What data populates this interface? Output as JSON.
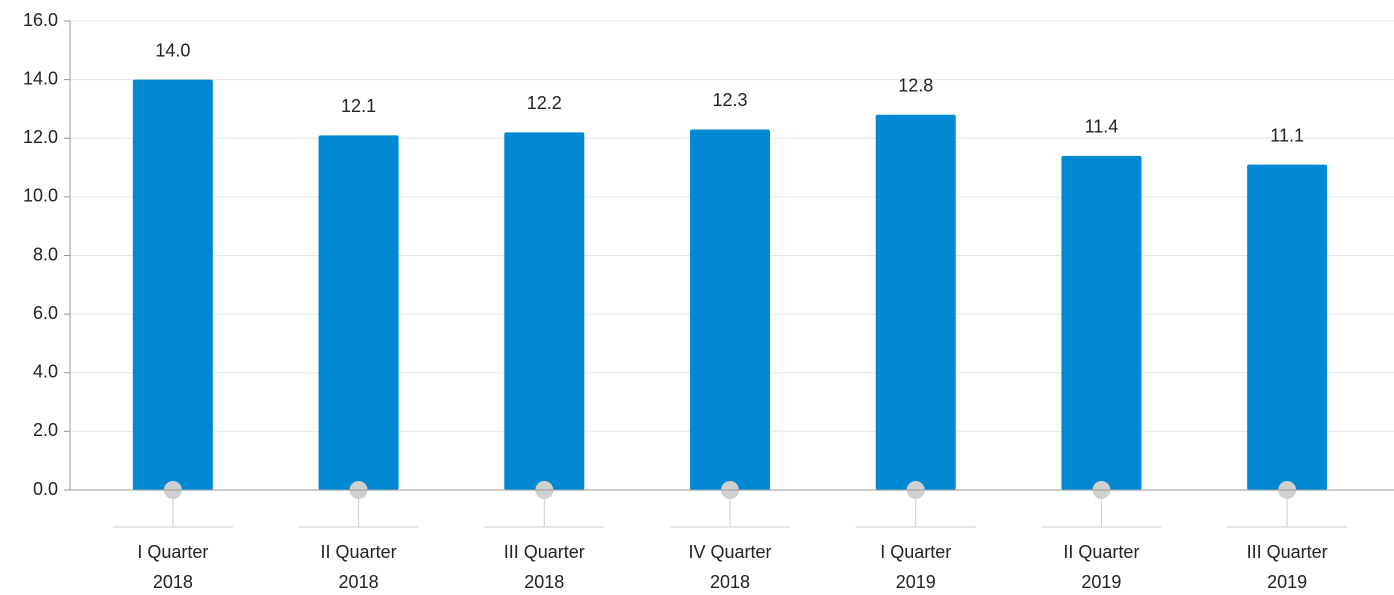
{
  "chart_data": {
    "type": "bar",
    "categories": [
      [
        "I Quarter",
        "2018"
      ],
      [
        "II Quarter",
        "2018"
      ],
      [
        "III Quarter",
        "2018"
      ],
      [
        "IV Quarter",
        "2018"
      ],
      [
        "I Quarter",
        "2019"
      ],
      [
        "II Quarter",
        "2019"
      ],
      [
        "III Quarter",
        "2019"
      ]
    ],
    "values": [
      14,
      12.1,
      12.2,
      12.3,
      12.8,
      11.4,
      11.1
    ],
    "value_labels": [
      "14.0",
      "12.1",
      "12.2",
      "12.3",
      "12.8",
      "11.4",
      "11.1"
    ],
    "color": "#0089d2",
    "ylim": [
      0,
      16
    ],
    "yticks": [
      {
        "value": 0,
        "label": "0.0"
      },
      {
        "value": 2,
        "label": "2.0"
      },
      {
        "value": 4,
        "label": "4.0"
      },
      {
        "value": 6,
        "label": "6.0"
      },
      {
        "value": 8,
        "label": "8.0"
      },
      {
        "value": 10,
        "label": "10.0"
      },
      {
        "value": 12,
        "label": "12.0"
      },
      {
        "value": 14,
        "label": "14.0"
      },
      {
        "value": 16,
        "label": "16.0"
      }
    ],
    "grid": true
  }
}
